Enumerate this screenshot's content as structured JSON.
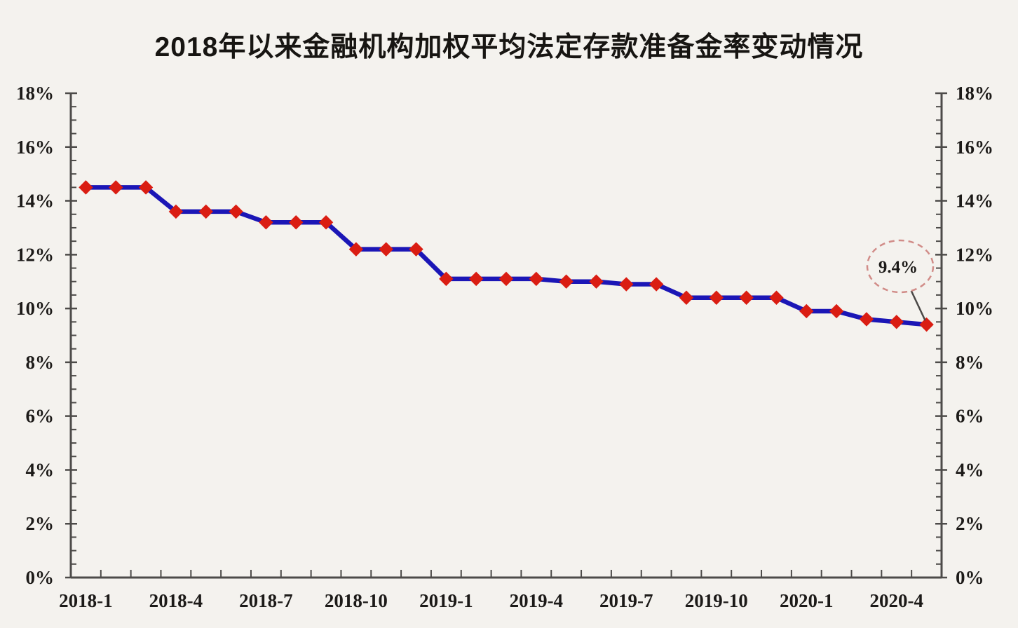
{
  "header": {
    "title": "2018年以来金融机构加权平均法定存款准备金率变动情况"
  },
  "colors": {
    "background": "#f4f2ee",
    "line": "#1b16b6",
    "marker": "#da1d12",
    "axis": "#4d4b49",
    "tick": "#4d4b49",
    "label_text": "#1c1a18",
    "annotation_stroke": "#d18c88",
    "annotation_text": "#141210",
    "connector": "#4a4846"
  },
  "chart_data": {
    "type": "line",
    "title": "2018年以来金融机构加权平均法定存款准备金率变动情况",
    "x": [
      "2018-1",
      "2018-2",
      "2018-3",
      "2018-4",
      "2018-5",
      "2018-6",
      "2018-7",
      "2018-8",
      "2018-9",
      "2018-10",
      "2018-11",
      "2018-12",
      "2019-1",
      "2019-2",
      "2019-3",
      "2019-4",
      "2019-5",
      "2019-6",
      "2019-7",
      "2019-8",
      "2019-9",
      "2019-10",
      "2019-11",
      "2019-12",
      "2020-1",
      "2020-2",
      "2020-3",
      "2020-4",
      "2020-5"
    ],
    "values": [
      14.5,
      14.5,
      14.5,
      13.6,
      13.6,
      13.6,
      13.2,
      13.2,
      13.2,
      12.2,
      12.2,
      12.2,
      11.1,
      11.1,
      11.1,
      11.1,
      11.0,
      11.0,
      10.9,
      10.9,
      10.4,
      10.4,
      10.4,
      10.4,
      9.9,
      9.9,
      9.6,
      9.5,
      9.4
    ],
    "xlabel": "",
    "ylabel": "",
    "ylim": [
      0,
      18
    ],
    "y_major_step": 2,
    "y_minor_step": 0.5,
    "y_tick_labels": [
      "0%",
      "2%",
      "4%",
      "6%",
      "8%",
      "10%",
      "12%",
      "14%",
      "16%",
      "18%"
    ],
    "x_tick_labels": [
      "2018-1",
      "2018-4",
      "2018-7",
      "2018-10",
      "2019-1",
      "2019-4",
      "2019-7",
      "2019-10",
      "2020-1",
      "2020-4"
    ],
    "x_tick_every": 3,
    "dual_y_axes": true,
    "grid": false,
    "legend": false,
    "marker_shape": "diamond",
    "annotation": {
      "text": "9.4%",
      "points_to": "2020-5",
      "value": 9.4
    }
  }
}
